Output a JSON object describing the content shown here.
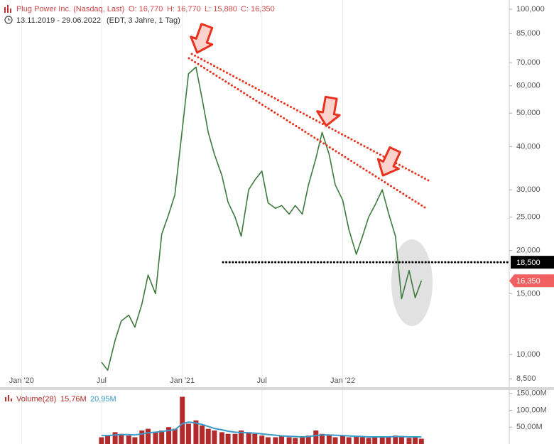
{
  "chart_data": [
    {
      "type": "line",
      "title": "Plug Power Inc. (Nasdaq, Last)",
      "ohlc": [
        "O: 16,770",
        "H: 16,770",
        "L: 15,880",
        "C: 16,350"
      ],
      "period": "13.11.2019 - 29.06.2022",
      "subtitle": "(EDT, 3 Jahre, 1 Tag)",
      "log_scale": true,
      "grid": true,
      "color": "#3d7a3d",
      "x": [
        "2020-07-01",
        "2020-07-15",
        "2020-08-01",
        "2020-08-15",
        "2020-09-01",
        "2020-09-15",
        "2020-10-01",
        "2020-10-15",
        "2020-11-01",
        "2020-11-15",
        "2020-12-01",
        "2020-12-15",
        "2021-01-01",
        "2021-01-15",
        "2021-02-01",
        "2021-02-15",
        "2021-03-01",
        "2021-03-15",
        "2021-04-01",
        "2021-04-15",
        "2021-05-01",
        "2021-05-15",
        "2021-06-01",
        "2021-06-15",
        "2021-07-01",
        "2021-07-15",
        "2021-08-01",
        "2021-08-15",
        "2021-09-01",
        "2021-09-15",
        "2021-10-01",
        "2021-10-15",
        "2021-11-01",
        "2021-11-15",
        "2021-12-01",
        "2021-12-15",
        "2022-01-01",
        "2022-01-15",
        "2022-02-01",
        "2022-02-15",
        "2022-03-01",
        "2022-03-15",
        "2022-04-01",
        "2022-04-15",
        "2022-05-01",
        "2022-05-15",
        "2022-06-01",
        "2022-06-15",
        "2022-06-29"
      ],
      "values": [
        9.5,
        9.0,
        11.0,
        12.5,
        13.0,
        12.0,
        14.0,
        17.0,
        15.0,
        22.3,
        25.5,
        29.0,
        45,
        65,
        68,
        55,
        44,
        38,
        33,
        27.6,
        25,
        22,
        30,
        32,
        34,
        27.5,
        26.5,
        27,
        25.5,
        27,
        25.5,
        31,
        37,
        44,
        38,
        31,
        28,
        23,
        19.5,
        22,
        25,
        27,
        30,
        25.7,
        22,
        14.5,
        17.5,
        14.6,
        16.35
      ],
      "xlim": [
        "2019-11-13",
        "2023-01-15"
      ],
      "xticks": [
        {
          "value": "2020-01-01",
          "label": "Jan '20"
        },
        {
          "value": "2020-07-01",
          "label": "Jul"
        },
        {
          "value": "2021-01-01",
          "label": "Jan '21"
        },
        {
          "value": "2021-07-01",
          "label": "Jul"
        },
        {
          "value": "2022-01-01",
          "label": "Jan '22"
        }
      ],
      "ylim": [
        8.04,
        106.35
      ],
      "yticks": [
        {
          "value": 8.5,
          "label": "8,500"
        },
        {
          "value": 10,
          "label": "10,000"
        },
        {
          "value": 15,
          "label": "15,000"
        },
        {
          "value": 20,
          "label": "20,000"
        },
        {
          "value": 25,
          "label": "25,000"
        },
        {
          "value": 30,
          "label": "30,000"
        },
        {
          "value": 40,
          "label": "40,000"
        },
        {
          "value": 50,
          "label": "50,000"
        },
        {
          "value": 60,
          "label": "60,000"
        },
        {
          "value": 70,
          "label": "70,000"
        },
        {
          "value": 85,
          "label": "85,000"
        },
        {
          "value": 100,
          "label": "100,000"
        }
      ],
      "hline": {
        "value": 18.5,
        "label": "18,500"
      },
      "last_price": {
        "value": 16.35,
        "label": "16,350"
      }
    },
    {
      "type": "bar",
      "legend_title": "Volume(28)",
      "legend_values": [
        {
          "value": 15.76,
          "label": "15,76M"
        },
        {
          "value": 20.95,
          "label": "20,95M"
        }
      ],
      "grid": true,
      "x": [
        "2020-07-01",
        "2020-07-15",
        "2020-08-01",
        "2020-08-15",
        "2020-09-01",
        "2020-09-15",
        "2020-10-01",
        "2020-10-15",
        "2020-11-01",
        "2020-11-15",
        "2020-12-01",
        "2020-12-15",
        "2021-01-01",
        "2021-01-15",
        "2021-02-01",
        "2021-02-15",
        "2021-03-01",
        "2021-03-15",
        "2021-04-01",
        "2021-04-15",
        "2021-05-01",
        "2021-05-15",
        "2021-06-01",
        "2021-06-15",
        "2021-07-01",
        "2021-07-15",
        "2021-08-01",
        "2021-08-15",
        "2021-09-01",
        "2021-09-15",
        "2021-10-01",
        "2021-10-15",
        "2021-11-01",
        "2021-11-15",
        "2021-12-01",
        "2021-12-15",
        "2022-01-01",
        "2022-01-15",
        "2022-02-01",
        "2022-02-15",
        "2022-03-01",
        "2022-03-15",
        "2022-04-01",
        "2022-04-15",
        "2022-05-01",
        "2022-05-15",
        "2022-06-01",
        "2022-06-15",
        "2022-06-29"
      ],
      "series": [
        {
          "kind": "bar",
          "color": "#b22a2a",
          "values": [
            20,
            25,
            35,
            30,
            25,
            20,
            40,
            45,
            35,
            40,
            50,
            45,
            140,
            60,
            70,
            55,
            45,
            40,
            35,
            30,
            30,
            40,
            35,
            30,
            25,
            20,
            20,
            25,
            20,
            18,
            20,
            25,
            40,
            30,
            25,
            20,
            25,
            20,
            22,
            20,
            18,
            20,
            22,
            20,
            25,
            22,
            18,
            20,
            15.76
          ]
        },
        {
          "kind": "line",
          "color": "#3a9ac9",
          "values": [
            25,
            25,
            27,
            28,
            28,
            27,
            30,
            33,
            35,
            37,
            40,
            42,
            60,
            65,
            62,
            58,
            52,
            46,
            42,
            38,
            35,
            34,
            33,
            32,
            30,
            28,
            26,
            24,
            23,
            22,
            21,
            22,
            25,
            27,
            27,
            26,
            25,
            24,
            23,
            22,
            21,
            21,
            21,
            21,
            22,
            22,
            21,
            21,
            20.95
          ]
        }
      ],
      "xlim": [
        "2019-11-13",
        "2023-01-15"
      ],
      "xticks": [
        {
          "value": "2020-01-01",
          "label": "Jan '20"
        },
        {
          "value": "2020-07-01",
          "label": "Jul"
        },
        {
          "value": "2021-01-01",
          "label": "Jan '21"
        },
        {
          "value": "2021-07-01",
          "label": "Jul"
        },
        {
          "value": "2022-01-01",
          "label": "Jan '22"
        }
      ],
      "ylim": [
        0,
        160
      ],
      "yticks": [
        {
          "value": 50,
          "label": "50,00M"
        },
        {
          "value": 100,
          "label": "100,00M"
        },
        {
          "value": 150,
          "label": "150,00M"
        }
      ]
    }
  ]
}
